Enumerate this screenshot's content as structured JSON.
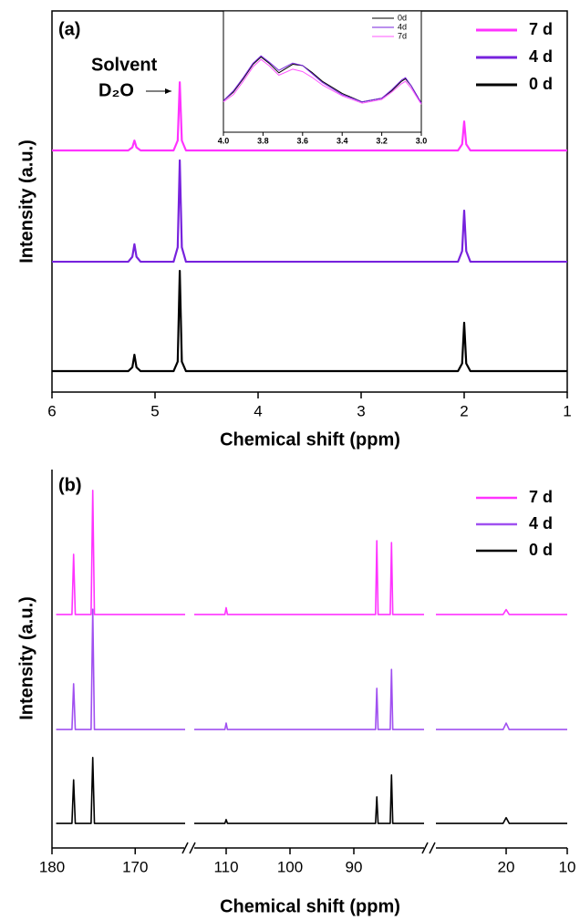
{
  "chart_data": [
    {
      "type": "line",
      "panel_label": "(a)",
      "annotations": [
        "Solvent",
        "D₂O"
      ],
      "xlabel": "Chemical shift (ppm)",
      "ylabel": "Intensity (a.u.)",
      "xlim": [
        6,
        1
      ],
      "xticks": [
        6,
        5,
        4,
        3,
        2,
        1
      ],
      "ylim": [
        0,
        100
      ],
      "legend": "upper right",
      "x": [
        6,
        5.26,
        5.22,
        5.2,
        5.18,
        5.14,
        4.82,
        4.78,
        4.76,
        4.74,
        4.7,
        2.06,
        2.02,
        2.0,
        1.98,
        1.94,
        1
      ],
      "series": [
        {
          "name": "7 d",
          "color": "#ff33ff",
          "values": [
            63.4,
            63.4,
            64.2,
            66,
            64.2,
            63.4,
            63.4,
            66,
            81.3,
            66,
            63.4,
            63.4,
            65,
            71,
            65,
            63.4,
            63.4
          ]
        },
        {
          "name": "4 d",
          "color": "#7722dd",
          "values": [
            34.2,
            34.2,
            35.5,
            38.8,
            35.5,
            34.2,
            34.2,
            38,
            60.8,
            38,
            34.2,
            34.2,
            37,
            47.6,
            37,
            34.2,
            34.2
          ]
        },
        {
          "name": "0 d",
          "color": "#000000",
          "values": [
            5.5,
            5.5,
            6.5,
            9.8,
            6.5,
            5.5,
            5.5,
            8,
            31.8,
            8,
            5.5,
            5.5,
            7.5,
            18.2,
            7.5,
            5.5,
            5.5
          ]
        }
      ],
      "inset": {
        "type": "line",
        "xlim": [
          4.0,
          3.0
        ],
        "xticks": [
          {
            "value": 4.0,
            "label": "4.0"
          },
          {
            "value": 3.8,
            "label": "3.8"
          },
          {
            "value": 3.6,
            "label": "3.6"
          },
          {
            "value": 3.4,
            "label": "3.4"
          },
          {
            "value": 3.2,
            "label": "3.2"
          },
          {
            "value": 3.0,
            "label": "3.0"
          }
        ],
        "ylim": [
          0,
          100
        ],
        "legend": "upper right",
        "x": [
          4.0,
          3.95,
          3.9,
          3.85,
          3.81,
          3.77,
          3.72,
          3.65,
          3.6,
          3.55,
          3.5,
          3.4,
          3.3,
          3.2,
          3.15,
          3.1,
          3.08,
          3.05,
          3.0
        ],
        "series": [
          {
            "name": "0d",
            "color": "#000000",
            "values": [
              26,
              33,
              44,
              56,
              62,
              57,
              49,
              56,
              55,
              49,
              42,
              32,
              25,
              28,
              34,
              42,
              44,
              38,
              24
            ]
          },
          {
            "name": "4d",
            "color": "#7722dd",
            "values": [
              26,
              34,
              45,
              57,
              63,
              58,
              51,
              57,
              55,
              48,
              41,
              31,
              25,
              28,
              35,
              43,
              45,
              38,
              24
            ]
          },
          {
            "name": "7d",
            "color": "#ff55ff",
            "values": [
              25,
              31,
              42,
              54,
              60,
              55,
              47,
              52,
              50,
              45,
              39,
              30,
              24,
              27,
              33,
              40,
              42,
              36,
              23
            ]
          }
        ]
      }
    },
    {
      "type": "line",
      "panel_label": "(b)",
      "xlabel": "Chemical shift (ppm)",
      "ylabel": "Intensity (a.u.)",
      "segments": [
        {
          "xlim": [
            180,
            164
          ],
          "xticks": [
            180,
            170
          ]
        },
        {
          "xlim": [
            115,
            79
          ],
          "xticks": [
            110,
            100,
            90
          ]
        },
        {
          "xlim": [
            31.5,
            10
          ],
          "xticks": [
            20,
            10
          ]
        }
      ],
      "ylim": [
        0,
        100
      ],
      "legend": "upper right",
      "x": [
        179.5,
        177.6,
        177.4,
        177.2,
        175.3,
        175.1,
        174.9,
        164,
        140,
        115,
        110.2,
        110,
        109.8,
        86.6,
        86.4,
        86.2,
        84.3,
        84.1,
        83.9,
        79,
        50,
        31.5,
        20.5,
        20,
        19.5,
        10
      ],
      "series": [
        {
          "name": "7 d",
          "color": "#ff33ff",
          "values": [
            61.7,
            61.7,
            77.6,
            61.7,
            61.7,
            94.5,
            61.7,
            61.7,
            null,
            61.7,
            61.7,
            63.5,
            61.7,
            61.7,
            81.2,
            61.7,
            61.7,
            80.7,
            61.7,
            61.7,
            null,
            61.7,
            61.7,
            63,
            61.7,
            61.7
          ]
        },
        {
          "name": "4 d",
          "color": "#a050f0",
          "values": [
            31.3,
            31.3,
            43.4,
            31.3,
            31.3,
            63.1,
            31.3,
            31.3,
            null,
            31.3,
            31.3,
            33,
            31.3,
            31.3,
            42.2,
            31.3,
            31.3,
            47.2,
            31.3,
            31.3,
            null,
            31.3,
            31.3,
            33,
            31.3,
            31.3
          ]
        },
        {
          "name": "0 d",
          "color": "#000000",
          "values": [
            6.5,
            6.5,
            18,
            6.5,
            6.5,
            23.9,
            6.5,
            6.5,
            null,
            6.5,
            6.5,
            7.5,
            6.5,
            6.5,
            13.5,
            6.5,
            6.5,
            19.3,
            6.5,
            6.5,
            null,
            6.5,
            6.5,
            8,
            6.5,
            6.5
          ]
        }
      ]
    }
  ]
}
